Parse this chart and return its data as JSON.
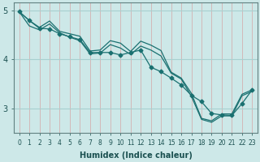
{
  "xlabel": "Humidex (Indice chaleur)",
  "background_color": "#cde8e8",
  "grid_color_h": "#a8d0d0",
  "grid_color_v": "#d4b0b0",
  "line_color": "#1a7070",
  "xlim": [
    -0.5,
    23.5
  ],
  "ylim": [
    2.5,
    5.15
  ],
  "xticks": [
    0,
    1,
    2,
    3,
    4,
    5,
    6,
    7,
    8,
    9,
    10,
    11,
    12,
    13,
    14,
    15,
    16,
    17,
    18,
    19,
    20,
    21,
    22,
    23
  ],
  "yticks": [
    3,
    4,
    5
  ],
  "line1_x": [
    0,
    1,
    2,
    3,
    4,
    5,
    6,
    7,
    8,
    9,
    10,
    11,
    12,
    13,
    14,
    15,
    16,
    17,
    18,
    19,
    20,
    21,
    22,
    23
  ],
  "line1_y": [
    4.97,
    4.79,
    4.65,
    4.78,
    4.57,
    4.52,
    4.47,
    4.17,
    4.19,
    4.38,
    4.33,
    4.16,
    4.37,
    4.29,
    4.18,
    3.74,
    3.62,
    3.31,
    2.8,
    2.75,
    2.89,
    2.89,
    3.29,
    3.38
  ],
  "line2_x": [
    0,
    1,
    2,
    3,
    4,
    5,
    6,
    7,
    8,
    9,
    10,
    11,
    12,
    13,
    14,
    15,
    16,
    17,
    18,
    19,
    20,
    21,
    22,
    23
  ],
  "line2_y": [
    4.97,
    4.79,
    4.63,
    4.62,
    4.52,
    4.46,
    4.4,
    4.14,
    4.14,
    4.14,
    4.09,
    4.14,
    4.19,
    3.84,
    3.75,
    3.62,
    3.48,
    3.27,
    3.14,
    2.9,
    2.87,
    2.86,
    3.1,
    3.38
  ],
  "line3_x": [
    0,
    1,
    2,
    3,
    4,
    5,
    6,
    7,
    8,
    9,
    10,
    11,
    12,
    13,
    14,
    15,
    16,
    17,
    18,
    19,
    20,
    21,
    22,
    23
  ],
  "line3_y": [
    4.97,
    4.68,
    4.6,
    4.72,
    4.54,
    4.45,
    4.38,
    4.11,
    4.13,
    4.3,
    4.23,
    4.1,
    4.27,
    4.19,
    4.07,
    3.72,
    3.6,
    3.25,
    2.78,
    2.72,
    2.85,
    2.85,
    3.26,
    3.35
  ]
}
